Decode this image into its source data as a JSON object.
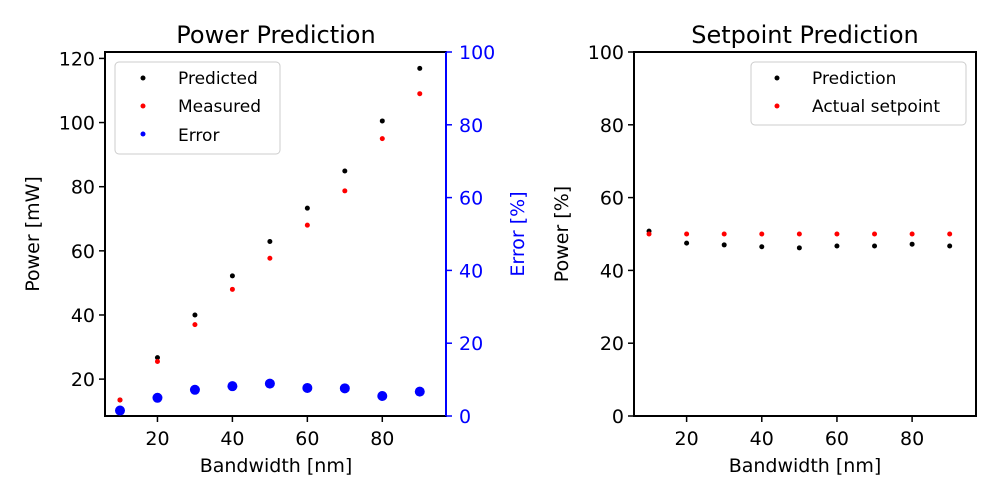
{
  "chart_data": [
    {
      "type": "scatter",
      "title": "Power Prediction",
      "xlabel": "Bandwidth [nm]",
      "ylabel": "Power [mW]",
      "y2label": "Error [%]",
      "xlim": [
        6,
        97
      ],
      "ylim": [
        8.5,
        122
      ],
      "y2lim": [
        0,
        100
      ],
      "xticks": [
        20,
        40,
        60,
        80
      ],
      "yticks": [
        20,
        40,
        60,
        80,
        100,
        120
      ],
      "y2ticks": [
        0,
        20,
        40,
        60,
        80,
        100
      ],
      "legend_position": "top-left",
      "x": [
        10,
        20,
        30,
        40,
        50,
        60,
        70,
        80,
        90
      ],
      "series": [
        {
          "name": "Predicted",
          "axis": "left",
          "color": "#000000",
          "values": [
            13.5,
            26.7,
            40.0,
            52.2,
            62.9,
            73.3,
            84.9,
            100.5,
            116.9
          ]
        },
        {
          "name": "Measured",
          "axis": "left",
          "color": "#ff0000",
          "values": [
            13.5,
            25.5,
            37.0,
            48.0,
            57.7,
            68.0,
            78.7,
            95.0,
            109.0
          ]
        },
        {
          "name": "Error",
          "axis": "right",
          "color": "#0000ff",
          "values": [
            1.5,
            5.0,
            7.2,
            8.2,
            8.9,
            7.7,
            7.6,
            5.5,
            6.7
          ]
        }
      ]
    },
    {
      "type": "scatter",
      "title": "Setpoint Prediction",
      "xlabel": "Bandwidth [nm]",
      "ylabel": "Power [%]",
      "xlim": [
        6,
        97
      ],
      "ylim": [
        0,
        100
      ],
      "xticks": [
        20,
        40,
        60,
        80
      ],
      "yticks": [
        0,
        20,
        40,
        60,
        80,
        100
      ],
      "legend_position": "top-right",
      "x": [
        10,
        20,
        30,
        40,
        50,
        60,
        70,
        80,
        90
      ],
      "series": [
        {
          "name": "Prediction",
          "color": "#000000",
          "values": [
            50.8,
            47.5,
            47.0,
            46.5,
            46.2,
            46.7,
            46.7,
            47.2,
            46.7
          ]
        },
        {
          "name": "Actual setpoint",
          "color": "#ff0000",
          "values": [
            50,
            50,
            50,
            50,
            50,
            50,
            50,
            50,
            50
          ]
        }
      ]
    }
  ]
}
